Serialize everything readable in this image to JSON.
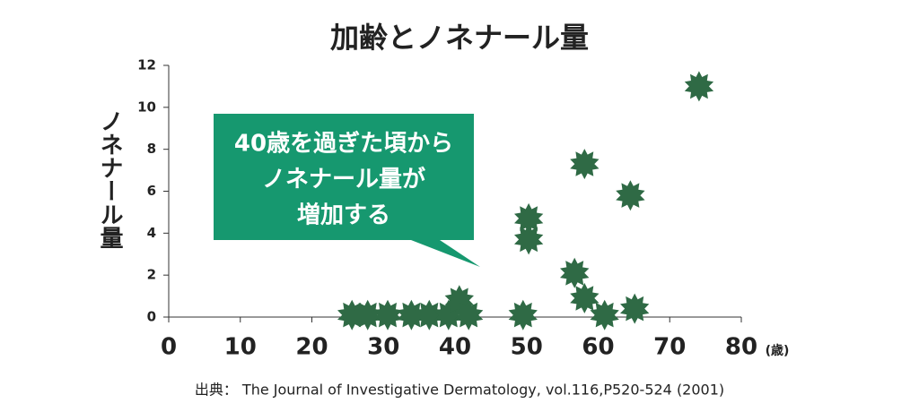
{
  "chart_data": {
    "type": "scatter",
    "title": "加齢とノネナール量",
    "y_label": "ノネナール量",
    "x_unit": "(歳)",
    "annotation": [
      "40歳を過ぎた頃から",
      "ノネナール量が",
      "増加する"
    ],
    "source": "出典： The Journal of Investigative Dermatology, vol.116,P520-524 (2001)",
    "color": "#2f6a45",
    "annotation_color": "#16986f",
    "x": [
      25.6,
      27.8,
      30.6,
      33.9,
      36.4,
      39.1,
      40.6,
      41.9,
      49.5,
      50.3,
      50.3,
      56.7,
      58.1,
      58.1,
      60.9,
      64.5,
      65.1,
      74.1
    ],
    "values": [
      0.1,
      0.1,
      0.1,
      0.1,
      0.1,
      0.1,
      0.8,
      0.1,
      0.1,
      4.7,
      3.7,
      2.1,
      0.9,
      7.3,
      0.1,
      5.8,
      0.4,
      11.0
    ],
    "xlim": [
      0,
      80
    ],
    "ylim": [
      0,
      12
    ],
    "xticks": [
      0,
      10,
      20,
      30,
      40,
      50,
      60,
      70,
      80
    ],
    "yticks": [
      0,
      2,
      4,
      6,
      8,
      10,
      12
    ]
  }
}
